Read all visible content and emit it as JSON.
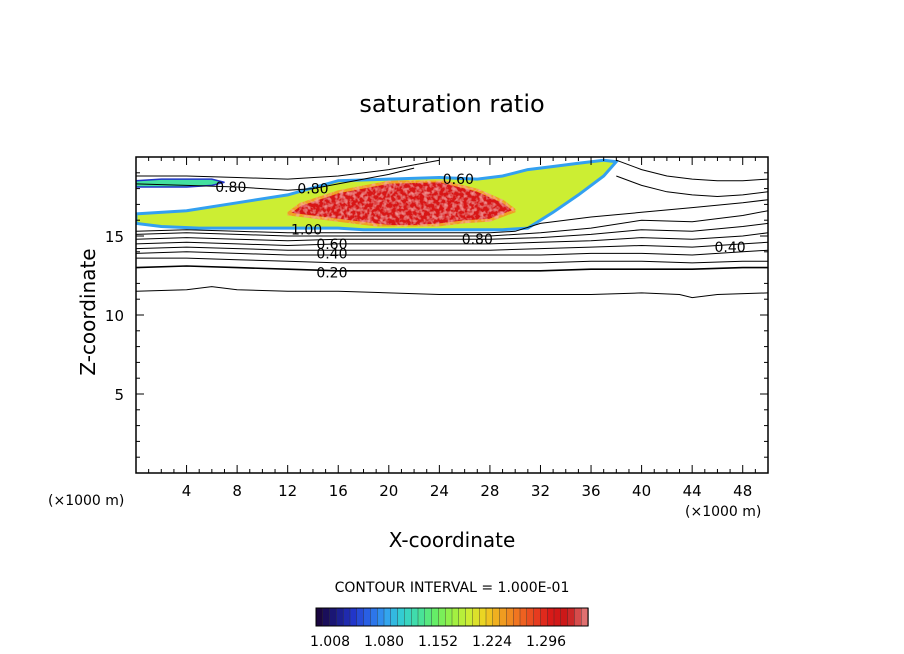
{
  "chart_data": {
    "type": "contour",
    "title": "saturation ratio",
    "xlabel": "X-coordinate",
    "ylabel": "Z-coordinate",
    "x_unit_label": "(×1000 m)",
    "x_unit_label_right": "(×1000 m)",
    "xlim": [
      0,
      50
    ],
    "ylim": [
      0,
      20
    ],
    "x_ticks": [
      4,
      8,
      12,
      16,
      20,
      24,
      28,
      32,
      36,
      40,
      44,
      48
    ],
    "y_ticks": [
      5,
      10,
      15
    ],
    "contour_interval_text": "CONTOUR INTERVAL = 1.000E-01",
    "contour_labels": [
      {
        "text": "0.80",
        "x": 7.5,
        "y": 18.1
      },
      {
        "text": "0.80",
        "x": 14.0,
        "y": 18.0
      },
      {
        "text": "0.80",
        "x": 27.0,
        "y": 14.8
      },
      {
        "text": "1.00",
        "x": 13.5,
        "y": 15.4
      },
      {
        "text": "0.60",
        "x": 15.5,
        "y": 14.5
      },
      {
        "text": "0.40",
        "x": 15.5,
        "y": 13.9
      },
      {
        "text": "0.20",
        "x": 15.5,
        "y": 12.7
      },
      {
        "text": "0.40",
        "x": 47.0,
        "y": 14.3
      },
      {
        "text": "0.60",
        "x": 25.5,
        "y": 18.6
      }
    ],
    "contour_levels": [
      {
        "level": 0.2,
        "x": [
          0,
          4,
          8,
          12,
          16,
          20,
          24,
          28,
          32,
          36,
          40,
          44,
          48,
          50
        ],
        "y": [
          13.0,
          13.1,
          13.0,
          12.9,
          12.8,
          12.8,
          12.8,
          12.8,
          12.8,
          12.9,
          12.9,
          12.9,
          13.0,
          13.0
        ]
      },
      {
        "level": 0.1,
        "x": [
          0,
          4,
          6,
          8,
          12,
          16,
          20,
          24,
          28,
          32,
          36,
          40,
          43,
          44,
          46,
          50
        ],
        "y": [
          11.5,
          11.6,
          11.8,
          11.6,
          11.5,
          11.5,
          11.4,
          11.3,
          11.3,
          11.3,
          11.3,
          11.4,
          11.3,
          11.1,
          11.3,
          11.4
        ]
      },
      {
        "level": 0.3,
        "x": [
          0,
          4,
          8,
          12,
          16,
          20,
          24,
          28,
          32,
          36,
          40,
          44,
          48,
          50
        ],
        "y": [
          13.6,
          13.6,
          13.5,
          13.4,
          13.3,
          13.3,
          13.3,
          13.3,
          13.3,
          13.4,
          13.4,
          13.3,
          13.4,
          13.4
        ]
      },
      {
        "level": 0.4,
        "x": [
          0,
          4,
          8,
          12,
          16,
          20,
          24,
          28,
          32,
          36,
          40,
          44,
          48,
          50
        ],
        "y": [
          13.9,
          14.0,
          13.9,
          13.8,
          13.8,
          13.8,
          13.8,
          13.8,
          13.8,
          13.9,
          13.9,
          13.8,
          14.0,
          14.1
        ]
      },
      {
        "level": 0.5,
        "x": [
          0,
          4,
          8,
          12,
          16,
          20,
          24,
          28,
          32,
          36,
          40,
          44,
          48,
          50
        ],
        "y": [
          14.2,
          14.3,
          14.2,
          14.1,
          14.1,
          14.1,
          14.1,
          14.1,
          14.2,
          14.3,
          14.4,
          14.3,
          14.5,
          14.6
        ]
      },
      {
        "level": 0.6,
        "x": [
          0,
          4,
          8,
          12,
          16,
          20,
          24,
          28,
          32,
          36,
          40,
          44,
          48,
          50
        ],
        "y": [
          14.5,
          14.6,
          14.5,
          14.4,
          14.5,
          14.5,
          14.5,
          14.5,
          14.6,
          14.7,
          14.9,
          14.8,
          15.0,
          15.2
        ]
      },
      {
        "level": 0.7,
        "x": [
          0,
          4,
          8,
          12,
          16,
          20,
          24,
          28,
          32,
          36,
          40,
          44,
          48,
          50
        ],
        "y": [
          14.8,
          14.9,
          14.8,
          14.7,
          14.8,
          14.8,
          14.8,
          14.8,
          14.9,
          15.1,
          15.4,
          15.3,
          15.6,
          15.8
        ]
      },
      {
        "level": 0.8,
        "x": [
          0,
          4,
          8,
          12,
          16,
          20,
          24,
          28,
          32,
          36,
          40,
          44,
          48,
          50
        ],
        "y": [
          15.1,
          15.2,
          15.1,
          15.0,
          15.0,
          15.0,
          15.0,
          15.0,
          15.2,
          15.5,
          16.0,
          15.9,
          16.3,
          16.6
        ]
      },
      {
        "level": 0.9,
        "x": [
          0,
          4,
          8,
          12,
          16,
          20,
          24,
          28,
          30,
          32,
          36,
          40,
          44,
          48,
          50
        ],
        "y": [
          15.3,
          15.4,
          15.3,
          15.2,
          15.2,
          15.2,
          15.2,
          15.2,
          15.3,
          15.8,
          16.2,
          16.5,
          16.8,
          17.1,
          17.3
        ]
      },
      {
        "level": 0.8,
        "x": [
          0,
          4,
          8,
          10,
          12,
          14,
          16,
          18,
          20,
          22
        ],
        "y": [
          18.3,
          18.2,
          18.1,
          18.0,
          17.9,
          18.0,
          18.3,
          18.6,
          18.9,
          19.3
        ]
      },
      {
        "level": 0.7,
        "x": [
          0,
          4,
          8,
          12,
          16,
          20,
          22,
          24
        ],
        "y": [
          18.8,
          18.8,
          18.7,
          18.6,
          18.8,
          19.2,
          19.5,
          19.8
        ]
      },
      {
        "level": 0.6,
        "x": [
          38,
          40,
          42,
          44,
          46,
          48,
          50
        ],
        "y": [
          19.8,
          19.2,
          18.8,
          18.6,
          18.5,
          18.5,
          18.6
        ]
      },
      {
        "level": 0.7,
        "x": [
          38,
          40,
          42,
          44,
          46,
          48,
          50
        ],
        "y": [
          18.8,
          18.2,
          17.8,
          17.6,
          17.5,
          17.6,
          17.8
        ]
      }
    ],
    "shaded_region": {
      "description_none": "",
      "levels_min": 1.0,
      "levels_max": 1.33,
      "outline_x": [
        0,
        2,
        5,
        8,
        10,
        12,
        14,
        16,
        18,
        20,
        22,
        24,
        26,
        27,
        29,
        31,
        33,
        35,
        37,
        38,
        37,
        35,
        33,
        31,
        30,
        29,
        27,
        24,
        20,
        16,
        12,
        8,
        4,
        0
      ],
      "outline_y": [
        15.8,
        15.6,
        15.5,
        15.5,
        15.5,
        15.5,
        15.5,
        15.5,
        15.4,
        15.4,
        15.4,
        15.4,
        15.4,
        15.4,
        15.4,
        15.5,
        16.5,
        17.6,
        18.8,
        19.7,
        19.8,
        19.6,
        19.4,
        19.2,
        19.0,
        18.8,
        18.6,
        18.7,
        18.6,
        18.5,
        17.6,
        17.1,
        16.6,
        16.4
      ],
      "core_x": [
        12,
        14,
        16,
        18,
        20,
        22,
        24,
        26,
        28,
        30,
        29,
        27,
        24,
        20,
        16,
        13
      ],
      "core_y": [
        16.4,
        16.2,
        16.0,
        15.8,
        15.6,
        15.6,
        15.7,
        15.9,
        16.0,
        16.6,
        17.2,
        17.9,
        18.5,
        18.4,
        17.8,
        17.0
      ],
      "upper_strip_x": [
        0,
        2,
        4,
        6,
        7,
        6,
        4,
        2,
        0
      ],
      "upper_strip_y": [
        18.5,
        18.6,
        18.6,
        18.6,
        18.4,
        18.2,
        18.1,
        18.1,
        18.1
      ]
    },
    "colorbar": {
      "colors": [
        "#1a0640",
        "#1a1a80",
        "#2233c8",
        "#2a66e8",
        "#33a0f0",
        "#33d0d0",
        "#44e0a0",
        "#66ee66",
        "#99f044",
        "#ccee33",
        "#f0d020",
        "#f0a020",
        "#f07020",
        "#e84020",
        "#d81818",
        "#c81818",
        "#e07070"
      ],
      "tick_labels": [
        "1.008",
        "1.080",
        "1.152",
        "1.224",
        "1.296"
      ]
    }
  }
}
